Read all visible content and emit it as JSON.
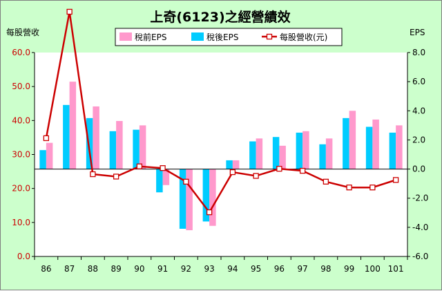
{
  "chart_data": {
    "type": "bar",
    "title": "上奇(6123)之經營績效",
    "left_axis_label": "每股營收",
    "right_axis_label": "EPS",
    "categories": [
      "86",
      "87",
      "88",
      "89",
      "90",
      "91",
      "92",
      "93",
      "94",
      "95",
      "96",
      "97",
      "98",
      "99",
      "100",
      "101"
    ],
    "series": [
      {
        "name": "稅前EPS",
        "kind": "bar",
        "axis": "right",
        "color": "#ff99cc",
        "values": [
          1.8,
          6.0,
          4.3,
          3.3,
          3.0,
          -1.1,
          -4.2,
          -3.9,
          0.6,
          2.1,
          1.6,
          2.6,
          2.1,
          4.0,
          3.4,
          3.0
        ]
      },
      {
        "name": "稅後EPS",
        "kind": "bar",
        "axis": "right",
        "color": "#00ccff",
        "values": [
          1.3,
          4.4,
          3.5,
          2.6,
          2.7,
          -1.6,
          -4.1,
          -3.6,
          0.6,
          1.9,
          2.2,
          2.5,
          1.7,
          3.5,
          2.9,
          2.5
        ]
      },
      {
        "name": "每股營收(元)",
        "kind": "line",
        "axis": "left",
        "color": "#cc0000",
        "values": [
          34.8,
          72.0,
          24.2,
          23.5,
          26.5,
          26.0,
          22.0,
          13.0,
          24.8,
          23.7,
          25.8,
          25.2,
          22.0,
          20.3,
          20.3,
          22.5
        ]
      }
    ],
    "left_axis": {
      "min": 0,
      "max": 60,
      "step": 10,
      "ticks": [
        "0.0",
        "10.0",
        "20.0",
        "30.0",
        "40.0",
        "50.0",
        "60.0"
      ]
    },
    "right_axis": {
      "min": -6,
      "max": 8,
      "step": 2,
      "ticks": [
        "-6.0",
        "-4.0",
        "-2.0",
        "0.0",
        "2.0",
        "4.0",
        "6.0",
        "8.0"
      ]
    },
    "legend_position": "top",
    "grid": false,
    "plot_background": "#ffffff",
    "page_background": "#ccffcc"
  }
}
